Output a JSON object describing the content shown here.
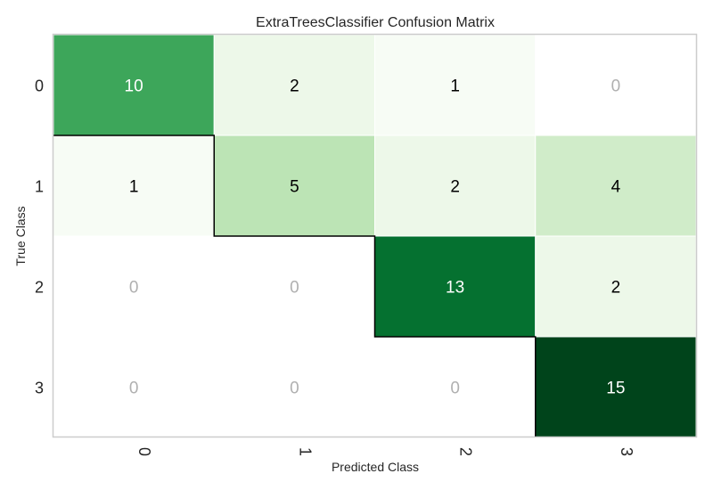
{
  "chart_data": {
    "type": "heatmap",
    "title": "ExtraTreesClassifier Confusion Matrix",
    "xlabel": "Predicted Class",
    "ylabel": "True Class",
    "x_categories": [
      "0",
      "1",
      "2",
      "3"
    ],
    "y_categories": [
      "0",
      "1",
      "2",
      "3"
    ],
    "values": [
      [
        10,
        2,
        1,
        0
      ],
      [
        1,
        5,
        2,
        4
      ],
      [
        0,
        0,
        13,
        2
      ],
      [
        0,
        0,
        0,
        15
      ]
    ],
    "cell_labels": [
      [
        "10",
        "2",
        "1",
        "0"
      ],
      [
        "1",
        "5",
        "2",
        "4"
      ],
      [
        "0",
        "0",
        "13",
        "2"
      ],
      [
        "0",
        "0",
        "0",
        "15"
      ]
    ],
    "colormap": "Greens",
    "diagonal_outlined": true,
    "zero_label_color": "#b0b0b0",
    "grid": false
  }
}
